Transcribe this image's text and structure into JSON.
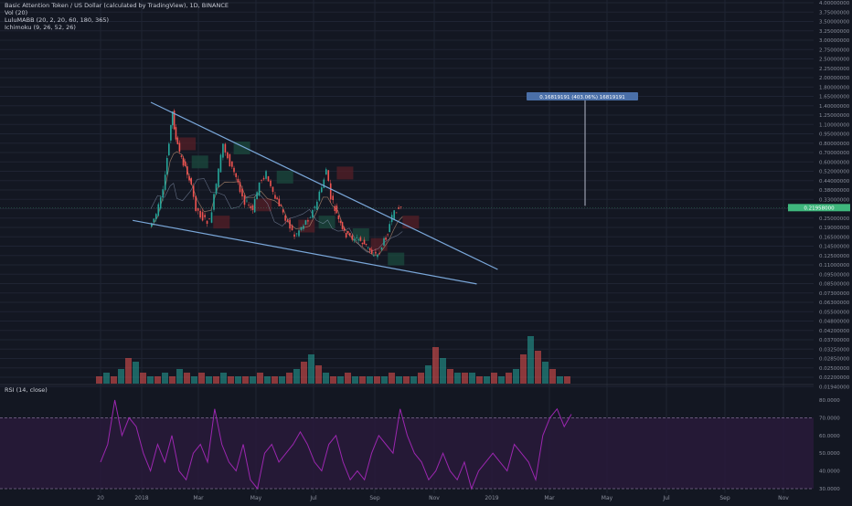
{
  "header": {
    "title": "Basic Attention Token / US Dollar (calculated by TradingView), 1D, BINANCE",
    "vol": "Vol (20)",
    "lulu": "LuluMABB (20, 2, 20, 60, 180, 365)",
    "ichimoku": "Ichimoku (9, 26, 52, 26)"
  },
  "colors": {
    "background": "#131722",
    "grid": "#1f2433",
    "trendline": "#7aa7d9",
    "candle_up": "#26a69a",
    "candle_down": "#ef5350",
    "cloud_up": "#1b4d3e",
    "cloud_down": "#5a1f27",
    "rsi_line": "#9c27b0",
    "rsi_band": "#2a1a3c",
    "price_tag": "#3fb77d",
    "measure_tag": "#4a6fa8"
  },
  "price_label": "0.21958000",
  "measure_label": "0.16819191 (403.06%) 16819191",
  "rsi_label": "RSI (14, close)",
  "chart_data": {
    "type": "candlestick",
    "x_axis": [
      "20",
      "2018",
      "Mar",
      "May",
      "Jul",
      "Sep",
      "Nov",
      "2019",
      "Mar",
      "May",
      "Jul",
      "Sep",
      "Nov"
    ],
    "y_axis_labels": [
      "4.00000000",
      "3.75000000",
      "3.50000000",
      "3.25000000",
      "3.00000000",
      "2.75000000",
      "2.50000000",
      "2.25000000",
      "2.00000000",
      "1.80000000",
      "1.65000000",
      "1.40000000",
      "1.25000000",
      "1.10000000",
      "0.95000000",
      "0.80000000",
      "0.70000000",
      "0.60000000",
      "0.52000000",
      "0.44000000",
      "0.38000000",
      "0.33000000",
      "0.29000000",
      "0.25000000",
      "0.19000000",
      "0.16500000",
      "0.14500000",
      "0.12500000",
      "0.11000000",
      "0.09500000",
      "0.08500000",
      "0.07300000",
      "0.06300000",
      "0.05500000",
      "0.04800000",
      "0.04200000",
      "0.03700000",
      "0.03250000",
      "0.02850000",
      "0.02500000",
      "0.02200000",
      "0.01940000"
    ],
    "y_scale": "log",
    "price_path": [
      [
        0,
        0.17
      ],
      [
        12,
        0.2
      ],
      [
        24,
        0.27
      ],
      [
        34,
        0.55
      ],
      [
        40,
        0.8
      ],
      [
        46,
        0.55
      ],
      [
        56,
        0.43
      ],
      [
        70,
        0.33
      ],
      [
        82,
        0.22
      ],
      [
        94,
        0.19
      ],
      [
        106,
        0.18
      ],
      [
        118,
        0.3
      ],
      [
        130,
        0.52
      ],
      [
        142,
        0.4
      ],
      [
        156,
        0.31
      ],
      [
        168,
        0.24
      ],
      [
        182,
        0.21
      ],
      [
        194,
        0.31
      ],
      [
        206,
        0.35
      ],
      [
        218,
        0.26
      ],
      [
        232,
        0.22
      ],
      [
        244,
        0.18
      ],
      [
        256,
        0.15
      ],
      [
        268,
        0.17
      ],
      [
        280,
        0.19
      ],
      [
        292,
        0.22
      ],
      [
        304,
        0.29
      ],
      [
        312,
        0.37
      ],
      [
        320,
        0.25
      ],
      [
        330,
        0.2
      ],
      [
        340,
        0.16
      ],
      [
        350,
        0.15
      ],
      [
        362,
        0.145
      ],
      [
        372,
        0.14
      ],
      [
        382,
        0.13
      ],
      [
        392,
        0.12
      ],
      [
        402,
        0.115
      ],
      [
        410,
        0.13
      ],
      [
        420,
        0.16
      ],
      [
        428,
        0.19
      ],
      [
        436,
        0.215
      ],
      [
        444,
        0.22
      ]
    ],
    "trendlines": [
      {
        "name": "upper",
        "points": [
          [
            0,
            0.92
          ],
          [
            612,
            0.095
          ]
        ]
      },
      {
        "name": "lower",
        "points": [
          [
            -32,
            0.185
          ],
          [
            575,
            0.078
          ]
        ]
      }
    ],
    "rsi": {
      "levels": [
        70,
        30
      ],
      "axis_labels": [
        "80.0000",
        "70.0000",
        "60.0000",
        "50.0000",
        "40.0000",
        "30.0000"
      ],
      "values": [
        45,
        55,
        80,
        60,
        70,
        65,
        50,
        40,
        55,
        45,
        60,
        40,
        35,
        50,
        55,
        45,
        75,
        55,
        45,
        40,
        55,
        35,
        30,
        50,
        55,
        45,
        50,
        55,
        62,
        55,
        45,
        40,
        55,
        60,
        45,
        35,
        40,
        35,
        50,
        60,
        55,
        50,
        75,
        60,
        50,
        45,
        35,
        40,
        50,
        40,
        35,
        45,
        30,
        40,
        45,
        50,
        45,
        40,
        55,
        50,
        45,
        35,
        60,
        70,
        75,
        65,
        72
      ]
    },
    "volume": {
      "values": [
        2,
        3,
        2,
        4,
        7,
        6,
        3,
        2,
        2,
        3,
        2,
        4,
        3,
        2,
        3,
        2,
        2,
        3,
        2,
        2,
        2,
        2,
        3,
        2,
        2,
        2,
        3,
        4,
        6,
        8,
        5,
        3,
        2,
        2,
        3,
        2,
        2,
        2,
        2,
        2,
        3,
        2,
        2,
        2,
        3,
        5,
        10,
        7,
        4,
        3,
        3,
        3,
        2,
        2,
        3,
        2,
        3,
        4,
        8,
        13,
        9,
        6,
        4,
        2,
        2
      ]
    },
    "grid": true
  }
}
